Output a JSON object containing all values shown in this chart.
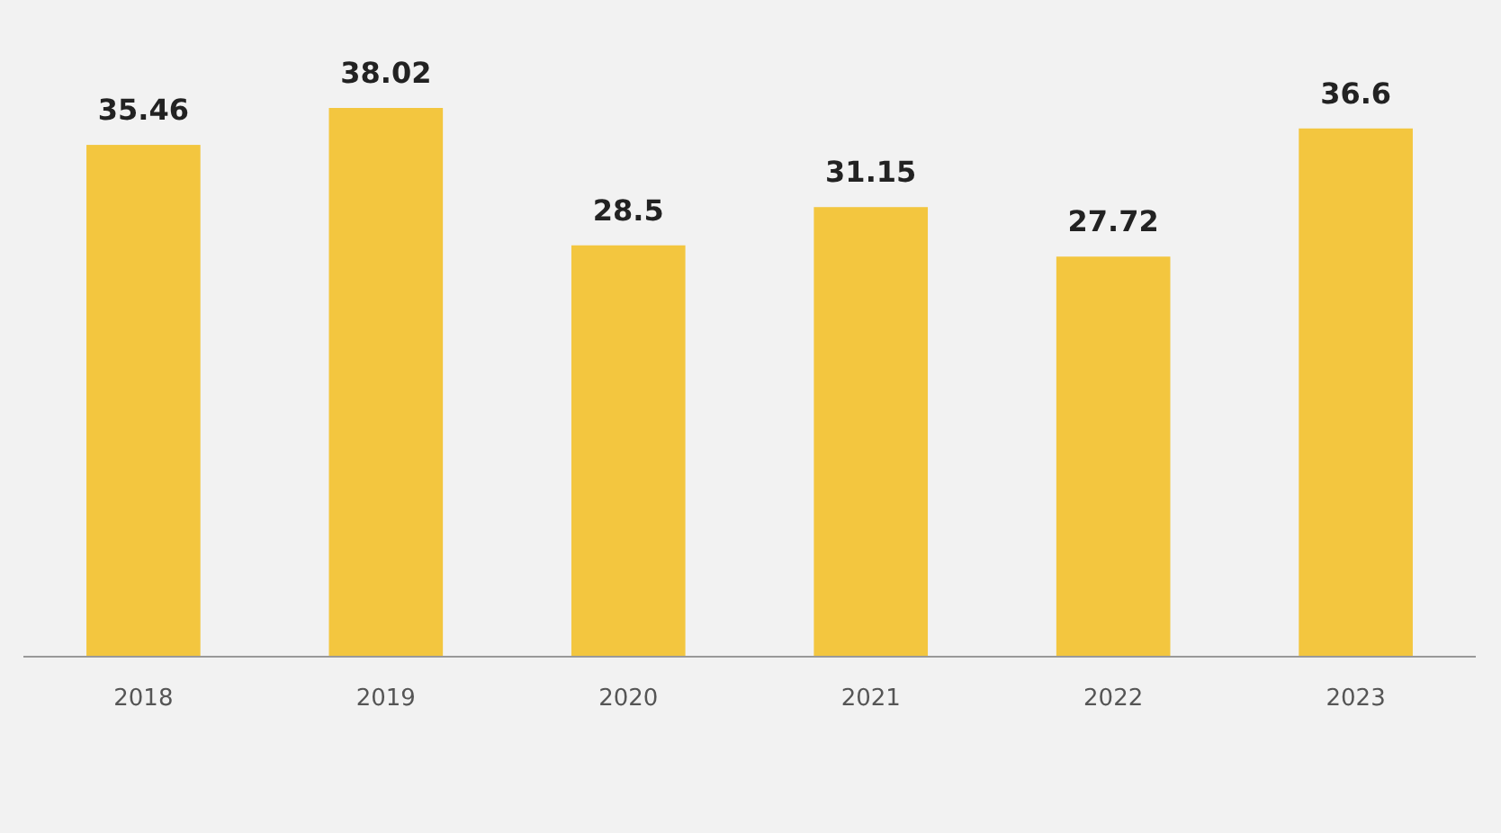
{
  "chart_data": {
    "type": "bar",
    "categories": [
      "2018",
      "2019",
      "2020",
      "2021",
      "2022",
      "2023"
    ],
    "values": [
      35.46,
      38.02,
      28.5,
      31.15,
      27.72,
      36.6
    ],
    "color": "#f3c63f",
    "data_labels": true
  }
}
